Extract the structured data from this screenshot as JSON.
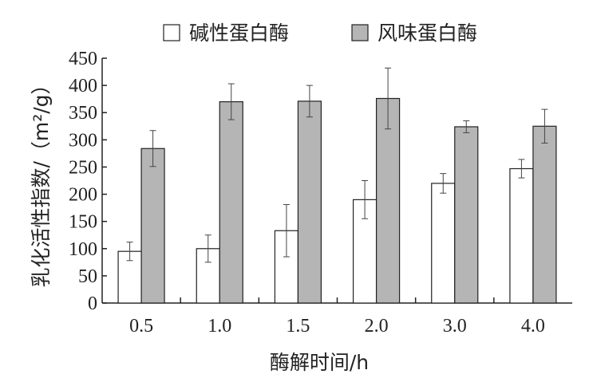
{
  "chart_data": {
    "type": "bar",
    "categories": [
      "0.5",
      "1.0",
      "1.5",
      "2.0",
      "3.0",
      "4.0"
    ],
    "series": [
      {
        "name": "碱性蛋白酶",
        "values": [
          95,
          100,
          133,
          190,
          220,
          247
        ],
        "errors": [
          17,
          25,
          48,
          35,
          18,
          17
        ],
        "color": "#ffffff"
      },
      {
        "name": "风味蛋白酶",
        "values": [
          284,
          370,
          371,
          376,
          324,
          325
        ],
        "errors": [
          33,
          33,
          29,
          56,
          11,
          31
        ],
        "color": "#b5b5b5"
      }
    ],
    "xlabel": "酶解时间/h",
    "ylabel": "乳化活性指数/（m²/g）",
    "ylim": [
      0,
      450
    ],
    "yticks": [
      0,
      50,
      100,
      150,
      200,
      250,
      300,
      350,
      400,
      450
    ],
    "legend_position": "top",
    "grid": false
  }
}
